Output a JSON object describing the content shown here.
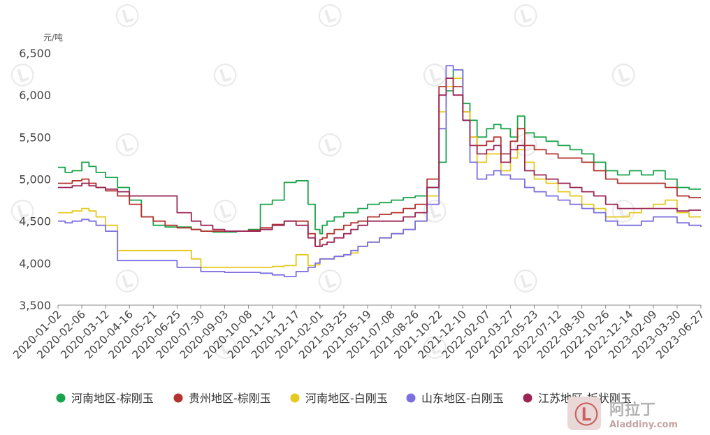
{
  "chart_data": {
    "type": "line",
    "unit_label": "元/吨",
    "y_ticks": [
      "6,500",
      "6,000",
      "5,500",
      "5,000",
      "4,500",
      "4,000",
      "3,500"
    ],
    "ylim": [
      3500,
      6500
    ],
    "x_ticks": [
      "2020-01-02",
      "2020-02-06",
      "2020-03-12",
      "2020-04-16",
      "2020-05-21",
      "2020-06-25",
      "2020-07-30",
      "2020-09-03",
      "2020-10-08",
      "2020-11-12",
      "2020-12-17",
      "2021-02-01",
      "2021-03-25",
      "2021-05-19",
      "2021-07-08",
      "2021-08-26",
      "2021-10-22",
      "2021-12-10",
      "2022-02-07",
      "2022-03-27",
      "2022-05-23",
      "2022-07-12",
      "2022-08-30",
      "2022-10-26",
      "2022-12-14",
      "2023-02-09",
      "2023-03-30",
      "2023-06-27"
    ],
    "grid": false,
    "legend_position": "bottom",
    "series": [
      {
        "name": "河南地区-棕刚玉",
        "color": "#1aa34a",
        "x": [
          0,
          0.3,
          0.6,
          1,
          1.3,
          1.6,
          2,
          2.5,
          3,
          3.5,
          4,
          4.5,
          5,
          5.6,
          6,
          6.5,
          7,
          7.5,
          8,
          8.5,
          9,
          9.5,
          10,
          10.5,
          10.8,
          11,
          11.1,
          11.3,
          11.6,
          12,
          12.3,
          12.6,
          13,
          13.5,
          14,
          14.5,
          15,
          15.5,
          16,
          16.3,
          16.6,
          17,
          17.3,
          17.6,
          18,
          18.3,
          18.6,
          19,
          19.3,
          19.6,
          20,
          20.5,
          21,
          21.5,
          22,
          22.5,
          23,
          23.5,
          24,
          24.5,
          25,
          25.5,
          26,
          26.5,
          27
        ],
        "values": [
          5140,
          5080,
          5100,
          5200,
          5150,
          5080,
          5020,
          4900,
          4750,
          4550,
          4450,
          4430,
          4430,
          4400,
          4380,
          4370,
          4370,
          4380,
          4400,
          4700,
          4750,
          4960,
          4980,
          4700,
          4400,
          4350,
          4450,
          4500,
          4550,
          4600,
          4600,
          4650,
          4700,
          4720,
          4750,
          4780,
          4800,
          4900,
          5200,
          6050,
          6300,
          5900,
          5700,
          5500,
          5600,
          5650,
          5600,
          5500,
          5750,
          5550,
          5500,
          5450,
          5400,
          5350,
          5300,
          5200,
          5100,
          5050,
          5100,
          5050,
          5100,
          5000,
          4900,
          4880,
          4880
        ]
      },
      {
        "name": "贵州地区-棕刚玉",
        "color": "#b2332f",
        "x": [
          0,
          0.3,
          0.6,
          1,
          1.3,
          1.6,
          2,
          2.5,
          3,
          3.5,
          4,
          4.5,
          5,
          5.6,
          6,
          6.5,
          7,
          7.5,
          8,
          8.5,
          9,
          9.5,
          10,
          10.5,
          10.8,
          11,
          11.1,
          11.3,
          11.6,
          12,
          12.3,
          12.6,
          13,
          13.5,
          14,
          14.5,
          15,
          15.5,
          16,
          16.3,
          16.6,
          17,
          17.3,
          17.6,
          18,
          18.3,
          18.6,
          19,
          19.3,
          19.6,
          20,
          20.5,
          21,
          21.5,
          22,
          22.5,
          23,
          23.5,
          24,
          24.5,
          25,
          25.5,
          26,
          26.5,
          27
        ],
        "values": [
          4950,
          4950,
          4980,
          5000,
          4950,
          4900,
          4860,
          4800,
          4700,
          4550,
          4500,
          4450,
          4420,
          4400,
          4380,
          4380,
          4380,
          4380,
          4390,
          4420,
          4460,
          4500,
          4500,
          4350,
          4200,
          4280,
          4300,
          4350,
          4400,
          4450,
          4480,
          4500,
          4550,
          4580,
          4600,
          4650,
          4700,
          5000,
          6100,
          6200,
          6100,
          5800,
          5500,
          5400,
          5450,
          5500,
          5300,
          5450,
          5600,
          5400,
          5350,
          5300,
          5250,
          5250,
          5200,
          5100,
          5000,
          4950,
          4950,
          4950,
          4950,
          4900,
          4800,
          4780,
          4780
        ]
      },
      {
        "name": "河南地区-白刚玉",
        "color": "#e6c81e",
        "x": [
          0,
          0.3,
          0.6,
          1,
          1.3,
          1.6,
          2,
          2.5,
          3,
          3.5,
          4,
          4.5,
          5,
          5.6,
          6,
          6.5,
          7,
          7.5,
          8,
          8.5,
          9,
          9.5,
          10,
          10.5,
          10.8,
          11,
          11.1,
          11.3,
          11.6,
          12,
          12.3,
          12.6,
          13,
          13.5,
          14,
          14.5,
          15,
          15.5,
          16,
          16.3,
          16.6,
          17,
          17.3,
          17.6,
          18,
          18.3,
          18.6,
          19,
          19.3,
          19.6,
          20,
          20.5,
          21,
          21.5,
          22,
          22.5,
          23,
          23.5,
          24,
          24.5,
          25,
          25.5,
          26,
          26.5,
          27
        ],
        "values": [
          4600,
          4600,
          4620,
          4650,
          4620,
          4550,
          4450,
          4150,
          4150,
          4150,
          4150,
          4150,
          4150,
          4050,
          3950,
          3950,
          3950,
          3950,
          3950,
          3950,
          3960,
          3970,
          4100,
          3970,
          3980,
          4050,
          4050,
          4050,
          4080,
          4100,
          4120,
          4200,
          4250,
          4300,
          4350,
          4400,
          4500,
          4800,
          5800,
          6100,
          6200,
          5800,
          5500,
          5200,
          5300,
          5300,
          5100,
          5250,
          5350,
          5200,
          5000,
          4950,
          4850,
          4800,
          4700,
          4650,
          4550,
          4550,
          4600,
          4650,
          4700,
          4750,
          4600,
          4550,
          4550
        ]
      },
      {
        "name": "山东地区-白刚玉",
        "color": "#7b6fe0",
        "x": [
          0,
          0.3,
          0.6,
          1,
          1.3,
          1.6,
          2,
          2.5,
          3,
          3.5,
          4,
          4.5,
          5,
          5.6,
          6,
          6.5,
          7,
          7.5,
          8,
          8.5,
          9,
          9.5,
          10,
          10.5,
          10.8,
          11,
          11.1,
          11.3,
          11.6,
          12,
          12.3,
          12.6,
          13,
          13.5,
          14,
          14.5,
          15,
          15.5,
          16,
          16.3,
          16.6,
          17,
          17.3,
          17.6,
          18,
          18.3,
          18.6,
          19,
          19.3,
          19.6,
          20,
          20.5,
          21,
          21.5,
          22,
          22.5,
          23,
          23.5,
          24,
          24.5,
          25,
          25.5,
          26,
          26.5,
          27
        ],
        "values": [
          4500,
          4480,
          4500,
          4520,
          4500,
          4450,
          4380,
          4030,
          4030,
          4030,
          4030,
          4030,
          3950,
          3950,
          3900,
          3900,
          3890,
          3890,
          3890,
          3880,
          3860,
          3840,
          3900,
          3950,
          4000,
          4050,
          4050,
          4050,
          4080,
          4100,
          4150,
          4200,
          4250,
          4300,
          4350,
          4400,
          4500,
          4700,
          5600,
          6350,
          6300,
          5700,
          5200,
          5000,
          5050,
          5100,
          5050,
          5000,
          5000,
          4900,
          4850,
          4800,
          4750,
          4700,
          4650,
          4600,
          4500,
          4450,
          4450,
          4500,
          4550,
          4550,
          4480,
          4450,
          4430
        ]
      },
      {
        "name": "江苏地区-板状刚玉",
        "color": "#9b2656",
        "x": [
          0,
          0.3,
          0.6,
          1,
          1.3,
          1.6,
          2,
          2.5,
          3,
          3.5,
          4,
          4.5,
          5,
          5.6,
          6,
          6.5,
          7,
          7.5,
          8,
          8.5,
          9,
          9.5,
          10,
          10.5,
          10.8,
          11,
          11.1,
          11.3,
          11.6,
          12,
          12.3,
          12.6,
          13,
          13.5,
          14,
          14.5,
          15,
          15.5,
          16,
          16.3,
          16.6,
          17,
          17.3,
          17.6,
          18,
          18.3,
          18.6,
          19,
          19.3,
          19.6,
          20,
          20.5,
          21,
          21.5,
          22,
          22.5,
          23,
          23.5,
          24,
          24.5,
          25,
          25.5,
          26,
          26.5,
          27
        ],
        "values": [
          4900,
          4900,
          4920,
          4950,
          4920,
          4900,
          4880,
          4850,
          4800,
          4800,
          4800,
          4800,
          4600,
          4500,
          4450,
          4400,
          4380,
          4380,
          4380,
          4400,
          4450,
          4500,
          4450,
          4300,
          4200,
          4200,
          4220,
          4250,
          4300,
          4350,
          4400,
          4450,
          4500,
          4500,
          4500,
          4550,
          4600,
          4900,
          6000,
          6200,
          6000,
          5700,
          5400,
          5300,
          5350,
          5400,
          5200,
          5350,
          5400,
          5100,
          5050,
          5000,
          4950,
          4900,
          4850,
          4800,
          4700,
          4650,
          4650,
          4650,
          4650,
          4650,
          4620,
          4630,
          4630
        ]
      }
    ]
  },
  "brand": {
    "name": "阿拉丁",
    "sub": "Aladdiny.com"
  }
}
